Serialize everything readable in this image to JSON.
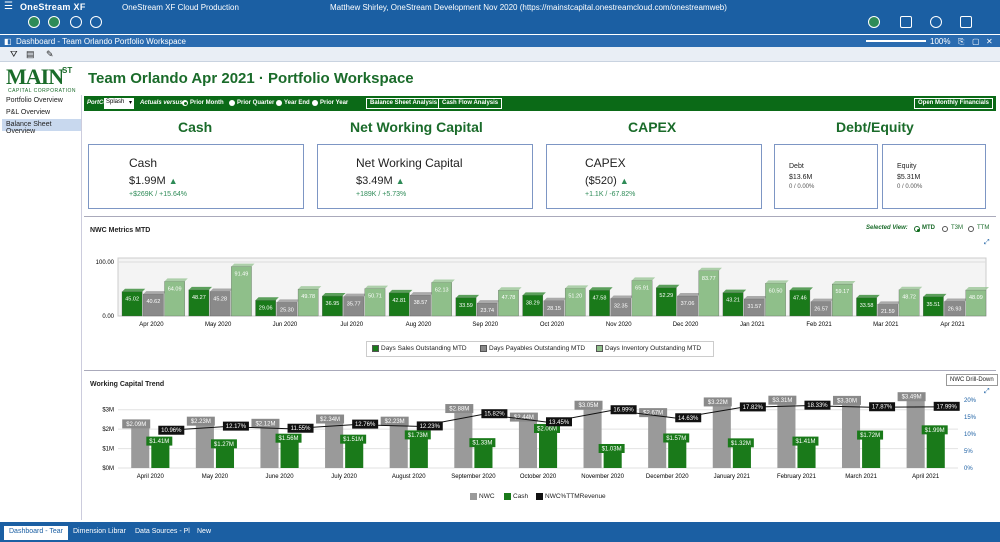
{
  "app": {
    "brand": "OneStream XF",
    "env": "OneStream XF Cloud Production",
    "user": "Matthew Shirley, OneStream Development Nov 2020 (https://mainstcapital.onestreamcloud.com/onestreamweb)"
  },
  "window": {
    "title": "Dashboard - Team Orlando Portfolio Workspace",
    "zoom": "100%"
  },
  "logo": {
    "main": "MAIN",
    "st": "ST",
    "corp": "CAPITAL CORPORATION"
  },
  "page_title": "Team Orlando Apr 2021 · Portfolio Workspace",
  "sidebar": {
    "items": [
      {
        "label": "Portfolio Overview"
      },
      {
        "label": "P&L Overview"
      },
      {
        "label": "Balance Sheet Overview"
      }
    ]
  },
  "filters": {
    "portco_label": "PortCo:",
    "portco_value": "Splash",
    "actuals_label": "Actuals versus:",
    "options": [
      "Prior Month",
      "Prior Quarter",
      "Year End",
      "Prior Year"
    ],
    "selected": "Prior Month",
    "btn_balance": "Balance Sheet Analysis",
    "btn_cashflow": "Cash Flow Analysis",
    "btn_monthly": "Open Monthly Financials"
  },
  "sections": {
    "cash": "Cash",
    "nwc": "Net Working Capital",
    "capex": "CAPEX",
    "debt_equity": "Debt/Equity"
  },
  "cards": {
    "cash": {
      "title": "Cash",
      "value": "$1.99M",
      "delta": "+$269K / +15.64%"
    },
    "nwc": {
      "title": "Net Working Capital",
      "value": "$3.49M",
      "delta": "+189K / +5.73%"
    },
    "capex": {
      "title": "CAPEX",
      "value": "($520)",
      "delta": "+1.1K / -67.82%"
    },
    "debt": {
      "title": "Debt",
      "value": "$13.6M",
      "delta": "0 / 0.00%"
    },
    "equity": {
      "title": "Equity",
      "value": "$5.31M",
      "delta": "0 / 0.00%"
    }
  },
  "nwc_panel": {
    "title": "NWC Metrics MTD",
    "selected_view_label": "Selected View:",
    "views": [
      "MTD",
      "T3M",
      "TTM"
    ],
    "selected": "MTD"
  },
  "trend_panel": {
    "title": "Working Capital Trend",
    "button": "NWC Drill-Down"
  },
  "colors": {
    "dark_green": "#1a7a1a",
    "gray": "#8a8a8a",
    "light_green": "#8fbf8a",
    "black": "#111111"
  },
  "chart_data": [
    {
      "type": "bar",
      "title": "NWC Metrics MTD",
      "categories": [
        "Apr 2020",
        "May 2020",
        "Jun 2020",
        "Jul 2020",
        "Aug 2020",
        "Sep 2020",
        "Oct 2020",
        "Nov 2020",
        "Dec 2020",
        "Jan 2021",
        "Feb 2021",
        "Mar 2021",
        "Apr 2021"
      ],
      "y_ticks": [
        "100.00",
        "0.00"
      ],
      "ylim": [
        0,
        100
      ],
      "series": [
        {
          "name": "Days Sales Outstanding MTD",
          "color": "#1a7a1a",
          "values": [
            45.02,
            48.27,
            29.06,
            36.95,
            42.81,
            33.59,
            38.29,
            47.58,
            52.29,
            43.21,
            47.46,
            33.58,
            35.51
          ]
        },
        {
          "name": "Days Payables Outstanding MTD",
          "color": "#8a8a8a",
          "values": [
            40.62,
            45.28,
            25.3,
            35.77,
            38.57,
            23.74,
            28.15,
            32.35,
            37.06,
            31.57,
            26.57,
            21.59,
            26.93
          ]
        },
        {
          "name": "Days Inventory Outstanding MTD",
          "color": "#8fbf8a",
          "values": [
            64.09,
            91.49,
            49.78,
            50.71,
            62.13,
            47.78,
            51.2,
            65.91,
            83.77,
            60.5,
            59.17,
            48.72,
            48.09
          ]
        }
      ]
    },
    {
      "type": "bar",
      "title": "Working Capital Trend",
      "categories": [
        "April 2020",
        "May 2020",
        "June 2020",
        "July 2020",
        "August 2020",
        "September 2020",
        "October 2020",
        "November 2020",
        "December 2020",
        "January 2021",
        "February 2021",
        "March 2021",
        "April 2021"
      ],
      "y_ticks_left": [
        "$3M",
        "$2M",
        "$1M",
        "$0M"
      ],
      "y_ticks_right": [
        "20%",
        "15%",
        "10%",
        "5%",
        "0%"
      ],
      "series": [
        {
          "name": "NWC",
          "color": "#9a9a9a",
          "values": [
            2.09,
            2.23,
            2.12,
            2.34,
            2.23,
            2.88,
            2.44,
            3.05,
            2.67,
            3.22,
            3.31,
            3.3,
            3.49
          ],
          "labels": [
            "$2.09M",
            "$2.23M",
            "$2.12M",
            "$2.34M",
            "$2.23M",
            "$2.88M",
            "$2.44M",
            "$3.05M",
            "$2.67M",
            "$3.22M",
            "$3.31M",
            "$3.30M",
            "$3.49M"
          ]
        },
        {
          "name": "Cash",
          "color": "#1a7a1a",
          "values": [
            1.41,
            1.27,
            1.56,
            1.51,
            1.73,
            1.33,
            2.06,
            1.03,
            1.57,
            1.32,
            1.41,
            1.72,
            1.99
          ],
          "labels": [
            "$1.41M",
            "$1.27M",
            "$1.56M",
            "$1.51M",
            "$1.73M",
            "$1.33M",
            "$2.06M",
            "$1.03M",
            "$1.57M",
            "$1.32M",
            "$1.41M",
            "$1.72M",
            "$1.99M"
          ]
        },
        {
          "name": "NWC%TTMRevenue",
          "color": "#111111",
          "values": [
            10.96,
            12.17,
            11.55,
            12.76,
            12.23,
            15.82,
            13.45,
            16.99,
            14.63,
            17.82,
            18.33,
            17.87,
            17.99
          ],
          "labels": [
            "10.96%",
            "12.17%",
            "11.55%",
            "12.76%",
            "12.23%",
            "15.82%",
            "13.45%",
            "16.99%",
            "14.63%",
            "17.82%",
            "18.33%",
            "17.87%",
            "17.99%"
          ]
        }
      ]
    }
  ],
  "bottom_tabs": [
    {
      "label": "Dashboard - Tear"
    },
    {
      "label": "Dimension Librar"
    },
    {
      "label": "Data Sources - Pl"
    },
    {
      "label": "New"
    }
  ]
}
